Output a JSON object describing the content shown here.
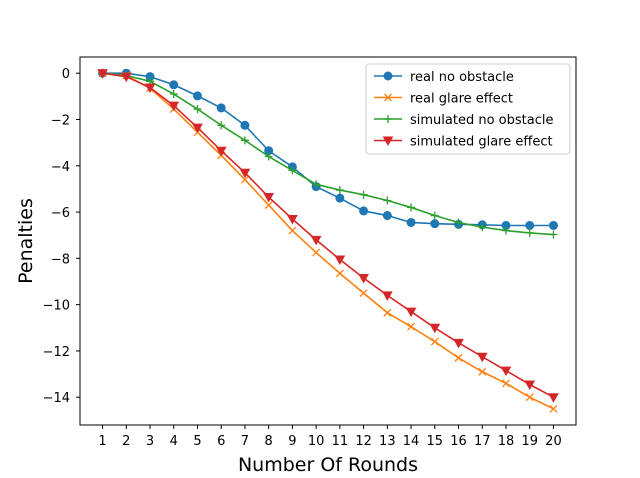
{
  "chart_data": {
    "type": "line",
    "title": "",
    "xlabel": "Number Of Rounds",
    "ylabel": "Penalties",
    "x": [
      1,
      2,
      3,
      4,
      5,
      6,
      7,
      8,
      9,
      10,
      11,
      12,
      13,
      14,
      15,
      16,
      17,
      18,
      19,
      20
    ],
    "xlim": [
      0.05,
      20.95
    ],
    "ylim": [
      -15.2,
      0.7
    ],
    "yticks": [
      0,
      -2,
      -4,
      -6,
      -8,
      -10,
      -12,
      -14
    ],
    "ytick_labels": [
      "0",
      "−2",
      "−4",
      "−6",
      "−8",
      "−10",
      "−12",
      "−14"
    ],
    "grid": false,
    "legend_position": "top-right",
    "series": [
      {
        "name": "real no obstacle",
        "color": "#1f77b4",
        "marker": "circle",
        "values": [
          0,
          0,
          -0.15,
          -0.5,
          -0.98,
          -1.5,
          -2.25,
          -3.35,
          -4.05,
          -4.9,
          -5.4,
          -5.95,
          -6.15,
          -6.45,
          -6.5,
          -6.53,
          -6.55,
          -6.58,
          -6.58,
          -6.58
        ]
      },
      {
        "name": "real glare effect",
        "color": "#ff7f0e",
        "marker": "x",
        "values": [
          0,
          -0.1,
          -0.65,
          -1.55,
          -2.55,
          -3.55,
          -4.6,
          -5.7,
          -6.8,
          -7.75,
          -8.65,
          -9.5,
          -10.35,
          -10.95,
          -11.6,
          -12.3,
          -12.9,
          -13.4,
          -14.0,
          -14.5
        ]
      },
      {
        "name": "simulated no obstacle",
        "color": "#2ca02c",
        "marker": "plus",
        "values": [
          0,
          -0.1,
          -0.35,
          -0.9,
          -1.55,
          -2.25,
          -2.9,
          -3.6,
          -4.2,
          -4.8,
          -5.05,
          -5.25,
          -5.5,
          -5.8,
          -6.15,
          -6.45,
          -6.65,
          -6.8,
          -6.9,
          -6.97
        ]
      },
      {
        "name": "simulated glare effect",
        "color": "#d62728",
        "marker": "triangle-down",
        "values": [
          0,
          -0.15,
          -0.62,
          -1.4,
          -2.35,
          -3.35,
          -4.3,
          -5.35,
          -6.3,
          -7.2,
          -8.05,
          -8.85,
          -9.6,
          -10.3,
          -11.0,
          -11.65,
          -12.25,
          -12.85,
          -13.45,
          -14.0
        ]
      }
    ]
  }
}
